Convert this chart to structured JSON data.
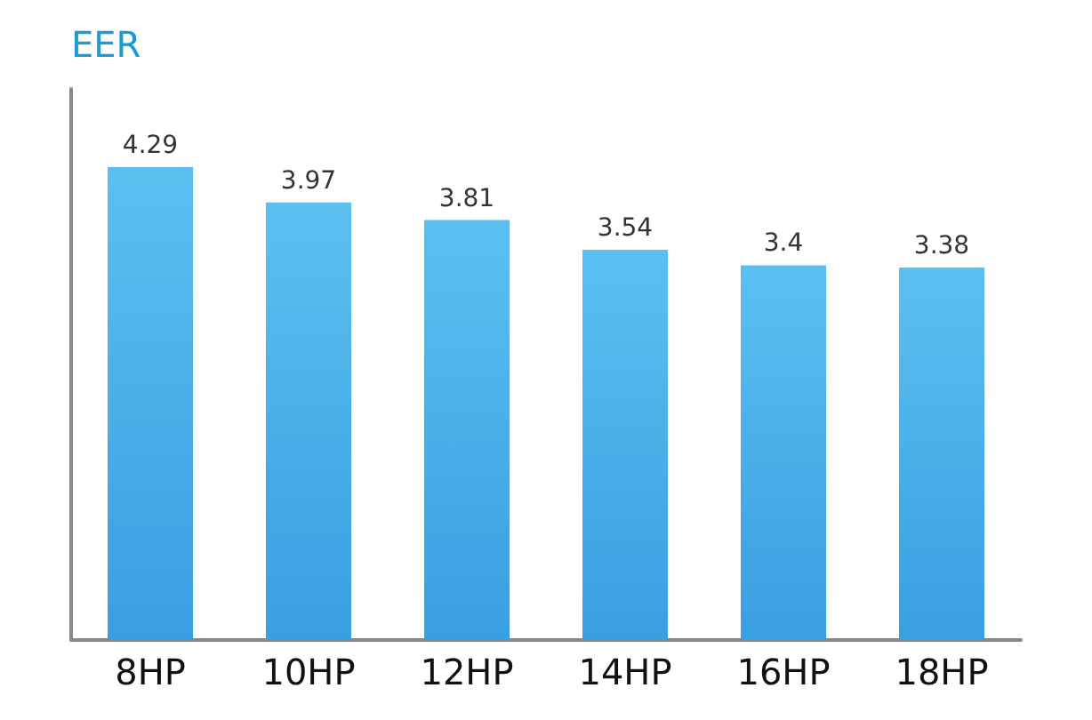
{
  "chart_data": {
    "type": "bar",
    "ylabel": "EER",
    "categories": [
      "8HP",
      "10HP",
      "12HP",
      "14HP",
      "16HP",
      "18HP"
    ],
    "values": [
      4.29,
      3.97,
      3.81,
      3.54,
      3.4,
      3.38
    ],
    "color": "#3a9ee2",
    "data_labels": true
  }
}
